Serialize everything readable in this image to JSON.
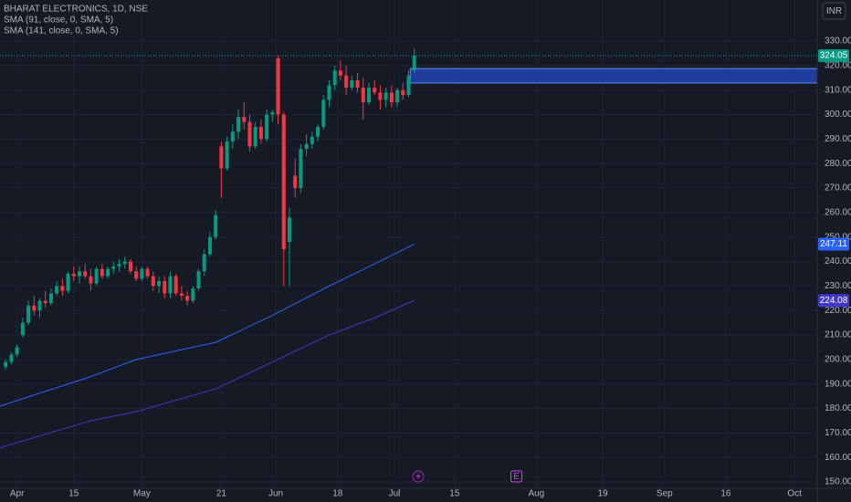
{
  "chart_data": {
    "type": "candlestick",
    "title": "BHARAT ELECTRONICS, 1D, NSE",
    "currency": "INR",
    "x": [
      -2,
      -1,
      0,
      1,
      2,
      3,
      4,
      5,
      6,
      7,
      8,
      9,
      10,
      11,
      12,
      13,
      14,
      15,
      16,
      17,
      18,
      19,
      20,
      21,
      22,
      23,
      24,
      25,
      26,
      27,
      28,
      29,
      30,
      31,
      32,
      33,
      34,
      35,
      36,
      37,
      38,
      39,
      40,
      41,
      42,
      43,
      44,
      45,
      46,
      47,
      48,
      49,
      50,
      51,
      52,
      53,
      54,
      55,
      56,
      57,
      58,
      59,
      60,
      61,
      62,
      63,
      64,
      65,
      66,
      67,
      68,
      69,
      70
    ],
    "open": [
      197,
      199,
      202,
      210,
      215,
      222,
      220,
      224,
      223,
      227,
      230,
      228,
      235,
      234,
      236,
      234,
      231,
      237,
      234,
      237,
      238,
      239,
      240,
      236,
      233,
      237,
      234,
      230,
      232,
      227,
      234,
      227,
      226,
      224,
      229,
      236,
      243,
      250,
      287,
      278,
      289,
      293,
      299,
      297,
      287,
      295,
      290,
      300,
      323,
      300,
      248,
      275,
      270,
      286,
      288,
      291,
      295,
      306,
      312,
      318,
      316,
      311,
      314,
      311,
      305,
      311,
      309,
      306,
      309,
      305,
      310,
      308,
      318
    ],
    "high": [
      200,
      203,
      206,
      217,
      224,
      226,
      225,
      228,
      229,
      232,
      233,
      236,
      238,
      238,
      239,
      237,
      238,
      239,
      238,
      240,
      241,
      242,
      241,
      238,
      238,
      238,
      236,
      234,
      234,
      236,
      235,
      230,
      228,
      230,
      237,
      245,
      252,
      261,
      289,
      291,
      296,
      302,
      305,
      300,
      297,
      298,
      302,
      302,
      324,
      301,
      262,
      282,
      288,
      292,
      293,
      296,
      308,
      314,
      320,
      322,
      320,
      316,
      317,
      315,
      313,
      314,
      312,
      311,
      312,
      311,
      313,
      318,
      327
    ],
    "low": [
      196,
      198,
      201,
      209,
      214,
      218,
      217,
      221,
      222,
      226,
      226,
      227,
      232,
      231,
      233,
      228,
      230,
      233,
      233,
      235,
      236,
      237,
      235,
      232,
      232,
      233,
      228,
      227,
      225,
      225,
      226,
      224,
      222,
      223,
      228,
      234,
      242,
      249,
      266,
      277,
      286,
      290,
      294,
      285,
      286,
      288,
      289,
      297,
      296,
      230,
      230,
      266,
      268,
      283,
      286,
      289,
      294,
      303,
      310,
      314,
      308,
      310,
      309,
      298,
      304,
      308,
      302,
      303,
      303,
      303,
      306,
      307,
      317
    ],
    "close": [
      199,
      202,
      205,
      215,
      222,
      220,
      224,
      223,
      227,
      230,
      228,
      235,
      234,
      236,
      234,
      231,
      237,
      234,
      237,
      238,
      239,
      240,
      236,
      233,
      237,
      234,
      230,
      232,
      227,
      234,
      227,
      226,
      224,
      229,
      236,
      243,
      250,
      259,
      278,
      289,
      293,
      299,
      297,
      287,
      295,
      290,
      300,
      301,
      300,
      245,
      258,
      270,
      286,
      288,
      291,
      295,
      306,
      312,
      318,
      316,
      311,
      314,
      311,
      305,
      311,
      309,
      306,
      309,
      305,
      310,
      308,
      316,
      324.05
    ],
    "up_color": "#089981",
    "down_color": "#f23645",
    "series": [
      {
        "name": "SMA (91, close, 0, SMA, 5)",
        "color": "#2962ff",
        "x": [
          -3,
          13,
          21,
          35,
          45,
          55,
          63,
          70
        ],
        "values": [
          181,
          193,
          200,
          207,
          218,
          230,
          239,
          247.11
        ]
      },
      {
        "name": "SMA (141, close, 0, SMA, 5)",
        "color": "#3f37c9",
        "x": [
          -3,
          13,
          21,
          35,
          45,
          55,
          63,
          70
        ],
        "values": [
          164,
          175,
          178.7,
          188,
          199,
          210,
          217,
          224.08
        ]
      }
    ],
    "zone": {
      "x_start": 69.3,
      "top": 318.8,
      "bottom": 312.9,
      "color": "#1e3c99"
    },
    "events": [
      {
        "label": "E",
        "x": 88
      }
    ],
    "xlim": [
      -3,
      141
    ],
    "ylim": [
      147.4,
      346.8
    ],
    "xticks": [
      {
        "value": 0,
        "label": "Apr"
      },
      {
        "value": 10,
        "label": "15"
      },
      {
        "value": 22,
        "label": "May"
      },
      {
        "value": 36,
        "label": "21"
      },
      {
        "value": 45.6,
        "label": "Jun"
      },
      {
        "value": 56.5,
        "label": "18"
      },
      {
        "value": 66.5,
        "label": "Jul"
      },
      {
        "value": 77.1,
        "label": "15"
      },
      {
        "value": 91.5,
        "label": "Aug"
      },
      {
        "value": 103.2,
        "label": "19"
      },
      {
        "value": 114.1,
        "label": "Sep"
      },
      {
        "value": 124.9,
        "label": "16"
      },
      {
        "value": 137,
        "label": "Oct"
      }
    ],
    "yticks": [
      {
        "value": 150,
        "label": "150.00"
      },
      {
        "value": 160,
        "label": "160.00"
      },
      {
        "value": 170,
        "label": "170.00"
      },
      {
        "value": 180,
        "label": "180.00"
      },
      {
        "value": 190,
        "label": "190.00"
      },
      {
        "value": 200,
        "label": "200.00"
      },
      {
        "value": 210,
        "label": "210.00"
      },
      {
        "value": 220,
        "label": "220.00"
      },
      {
        "value": 230,
        "label": "230.00"
      },
      {
        "value": 240,
        "label": "240.00"
      },
      {
        "value": 250,
        "label": "250.00"
      },
      {
        "value": 260,
        "label": "260.00"
      },
      {
        "value": 270,
        "label": "270.00"
      },
      {
        "value": 280,
        "label": "280.00"
      },
      {
        "value": 290,
        "label": "290.00"
      },
      {
        "value": 300,
        "label": "300.00"
      },
      {
        "value": 310,
        "label": "310.00"
      },
      {
        "value": 320,
        "label": "320.00"
      },
      {
        "value": 330,
        "label": "330.00"
      }
    ],
    "grid": true
  }
}
